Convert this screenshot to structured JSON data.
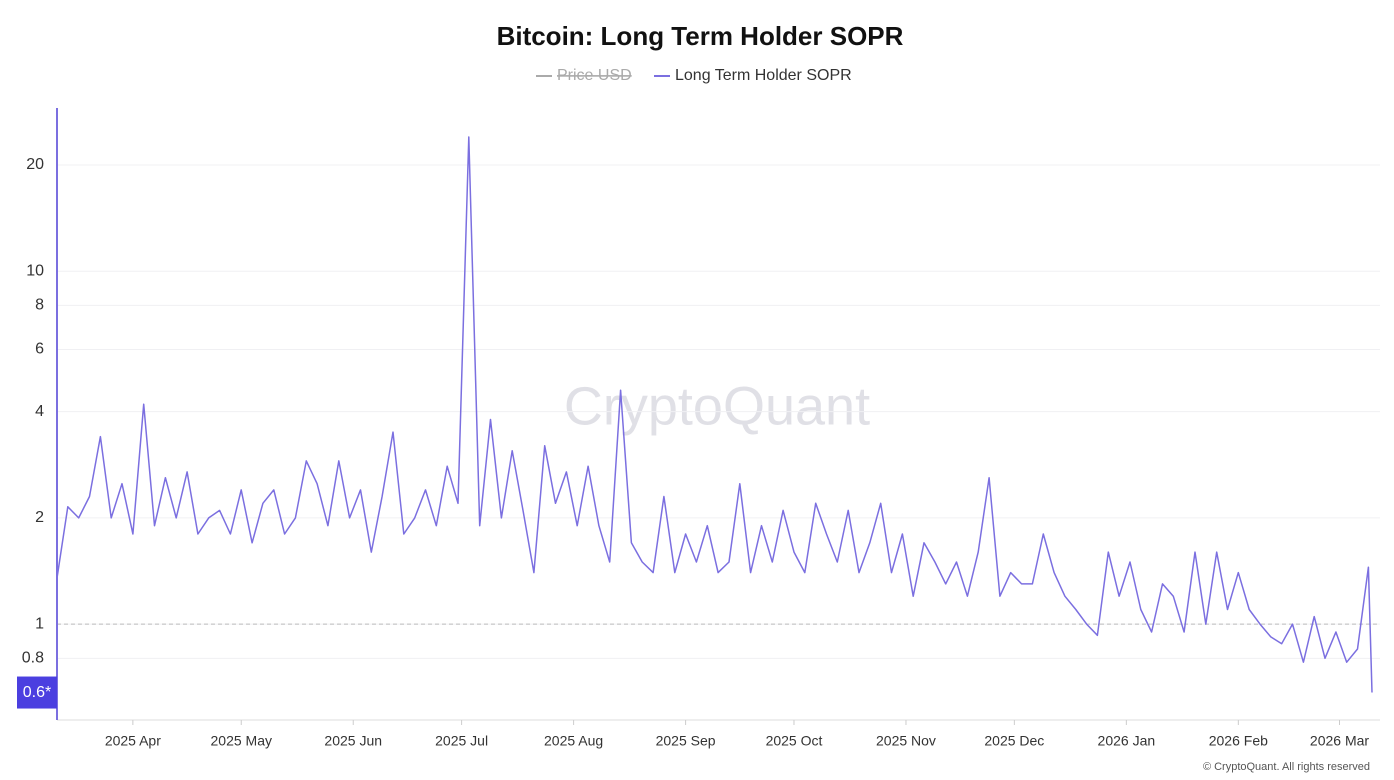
{
  "chart_data": {
    "type": "line",
    "title": "Bitcoin: Long Term Holder SOPR",
    "watermark": "CryptoQuant",
    "credit": "© CryptoQuant. All rights reserved",
    "log_scale": true,
    "grid": true,
    "legend_position": "top",
    "hidden_series": [
      {
        "name": "Price USD",
        "color": "#aaaaaa"
      }
    ],
    "reference_line": 1,
    "current_value": {
      "value": 0.64,
      "label": "0.6*"
    },
    "xlim": [
      0,
      364
    ],
    "xticks": [
      {
        "value": 21,
        "label": "2025 Apr"
      },
      {
        "value": 51,
        "label": "2025 May"
      },
      {
        "value": 82,
        "label": "2025 Jun"
      },
      {
        "value": 112,
        "label": "2025 Jul"
      },
      {
        "value": 143,
        "label": "2025 Aug"
      },
      {
        "value": 174,
        "label": "2025 Sep"
      },
      {
        "value": 204,
        "label": "2025 Oct"
      },
      {
        "value": 235,
        "label": "2025 Nov"
      },
      {
        "value": 265,
        "label": "2025 Dec"
      },
      {
        "value": 296,
        "label": "2026 Jan"
      },
      {
        "value": 327,
        "label": "2026 Feb"
      },
      {
        "value": 355,
        "label": "2026 Mar"
      }
    ],
    "ylim": [
      0.535,
      29
    ],
    "yticks": [
      0.8,
      1,
      2,
      4,
      6,
      8,
      10,
      20
    ],
    "x": [
      0,
      3,
      6,
      9,
      12,
      15,
      18,
      21,
      24,
      27,
      30,
      33,
      36,
      39,
      42,
      45,
      48,
      51,
      54,
      57,
      60,
      63,
      66,
      69,
      72,
      75,
      78,
      81,
      84,
      87,
      90,
      93,
      96,
      99,
      102,
      105,
      108,
      111,
      114,
      117,
      120,
      123,
      126,
      129,
      132,
      135,
      138,
      141,
      144,
      147,
      150,
      153,
      156,
      159,
      162,
      165,
      168,
      171,
      174,
      177,
      180,
      183,
      186,
      189,
      192,
      195,
      198,
      201,
      204,
      207,
      210,
      213,
      216,
      219,
      222,
      225,
      228,
      231,
      234,
      237,
      240,
      243,
      246,
      249,
      252,
      255,
      258,
      261,
      264,
      267,
      270,
      273,
      276,
      279,
      282,
      285,
      288,
      291,
      294,
      297,
      300,
      303,
      306,
      309,
      312,
      315,
      318,
      321,
      324,
      327,
      330,
      333,
      336,
      339,
      342,
      345,
      348,
      351,
      354,
      357,
      360,
      363,
      364
    ],
    "series": [
      {
        "name": "Long Term Holder SOPR",
        "color": "#7b6fe0",
        "values": [
          1.35,
          2.15,
          2.0,
          2.3,
          3.4,
          2.0,
          2.5,
          1.8,
          4.2,
          1.9,
          2.6,
          2.0,
          2.7,
          1.8,
          2.0,
          2.1,
          1.8,
          2.4,
          1.7,
          2.2,
          2.4,
          1.8,
          2.0,
          2.9,
          2.5,
          1.9,
          2.9,
          2.0,
          2.4,
          1.6,
          2.3,
          3.5,
          1.8,
          2.0,
          2.4,
          1.9,
          2.8,
          2.2,
          24,
          1.9,
          3.8,
          2.0,
          3.1,
          2.1,
          1.4,
          3.2,
          2.2,
          2.7,
          1.9,
          2.8,
          1.9,
          1.5,
          4.6,
          1.7,
          1.5,
          1.4,
          2.3,
          1.4,
          1.8,
          1.5,
          1.9,
          1.4,
          1.5,
          2.5,
          1.4,
          1.9,
          1.5,
          2.1,
          1.6,
          1.4,
          2.2,
          1.8,
          1.5,
          2.1,
          1.4,
          1.7,
          2.2,
          1.4,
          1.8,
          1.2,
          1.7,
          1.5,
          1.3,
          1.5,
          1.2,
          1.6,
          2.6,
          1.2,
          1.4,
          1.3,
          1.3,
          1.8,
          1.4,
          1.2,
          1.1,
          1.0,
          0.93,
          1.6,
          1.2,
          1.5,
          1.1,
          0.95,
          1.3,
          1.2,
          0.95,
          1.6,
          1.0,
          1.6,
          1.1,
          1.4,
          1.1,
          1.0,
          0.92,
          0.88,
          1.0,
          0.78,
          1.05,
          0.8,
          0.95,
          0.78,
          0.85,
          1.45,
          0.64
        ]
      }
    ]
  }
}
